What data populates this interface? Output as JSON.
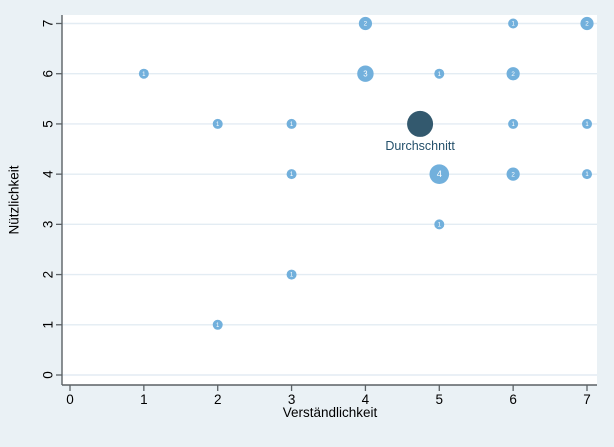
{
  "chart_data": {
    "type": "scatter",
    "variant": "bubble",
    "title": "",
    "xlabel": "Verständlichkeit",
    "ylabel": "Nützlichkeit",
    "xlim": [
      0,
      7
    ],
    "ylim": [
      0,
      7
    ],
    "xticks": [
      0,
      1,
      2,
      3,
      4,
      5,
      6,
      7
    ],
    "yticks": [
      0,
      1,
      2,
      3,
      4,
      5,
      6,
      7
    ],
    "grid": "horizontal",
    "legend": "none",
    "points": [
      {
        "x": 1,
        "y": 6,
        "count": 1
      },
      {
        "x": 2,
        "y": 1,
        "count": 1
      },
      {
        "x": 2,
        "y": 5,
        "count": 1
      },
      {
        "x": 3,
        "y": 2,
        "count": 1
      },
      {
        "x": 3,
        "y": 4,
        "count": 1
      },
      {
        "x": 3,
        "y": 5,
        "count": 1
      },
      {
        "x": 4,
        "y": 6,
        "count": 3
      },
      {
        "x": 4,
        "y": 7,
        "count": 2
      },
      {
        "x": 5,
        "y": 3,
        "count": 1
      },
      {
        "x": 5,
        "y": 4,
        "count": 4
      },
      {
        "x": 5,
        "y": 6,
        "count": 1
      },
      {
        "x": 6,
        "y": 4,
        "count": 2
      },
      {
        "x": 6,
        "y": 5,
        "count": 1
      },
      {
        "x": 6,
        "y": 6,
        "count": 2
      },
      {
        "x": 6,
        "y": 7,
        "count": 1
      },
      {
        "x": 7,
        "y": 4,
        "count": 1
      },
      {
        "x": 7,
        "y": 5,
        "count": 1
      },
      {
        "x": 7,
        "y": 7,
        "count": 2
      }
    ],
    "mean_point": {
      "x": 4.74,
      "y": 5.0,
      "label": "Durchschnitt"
    },
    "colors": {
      "background": "#eaf1f5",
      "plot_background": "#ffffff",
      "gridline": "#e3ecf3",
      "axis": "#5b6165",
      "tick_label": "#000000",
      "bubble": "#72b0dc",
      "bubble_count_label": "#ffffff",
      "mean": "#33596e",
      "mean_label": "#24506b"
    }
  }
}
